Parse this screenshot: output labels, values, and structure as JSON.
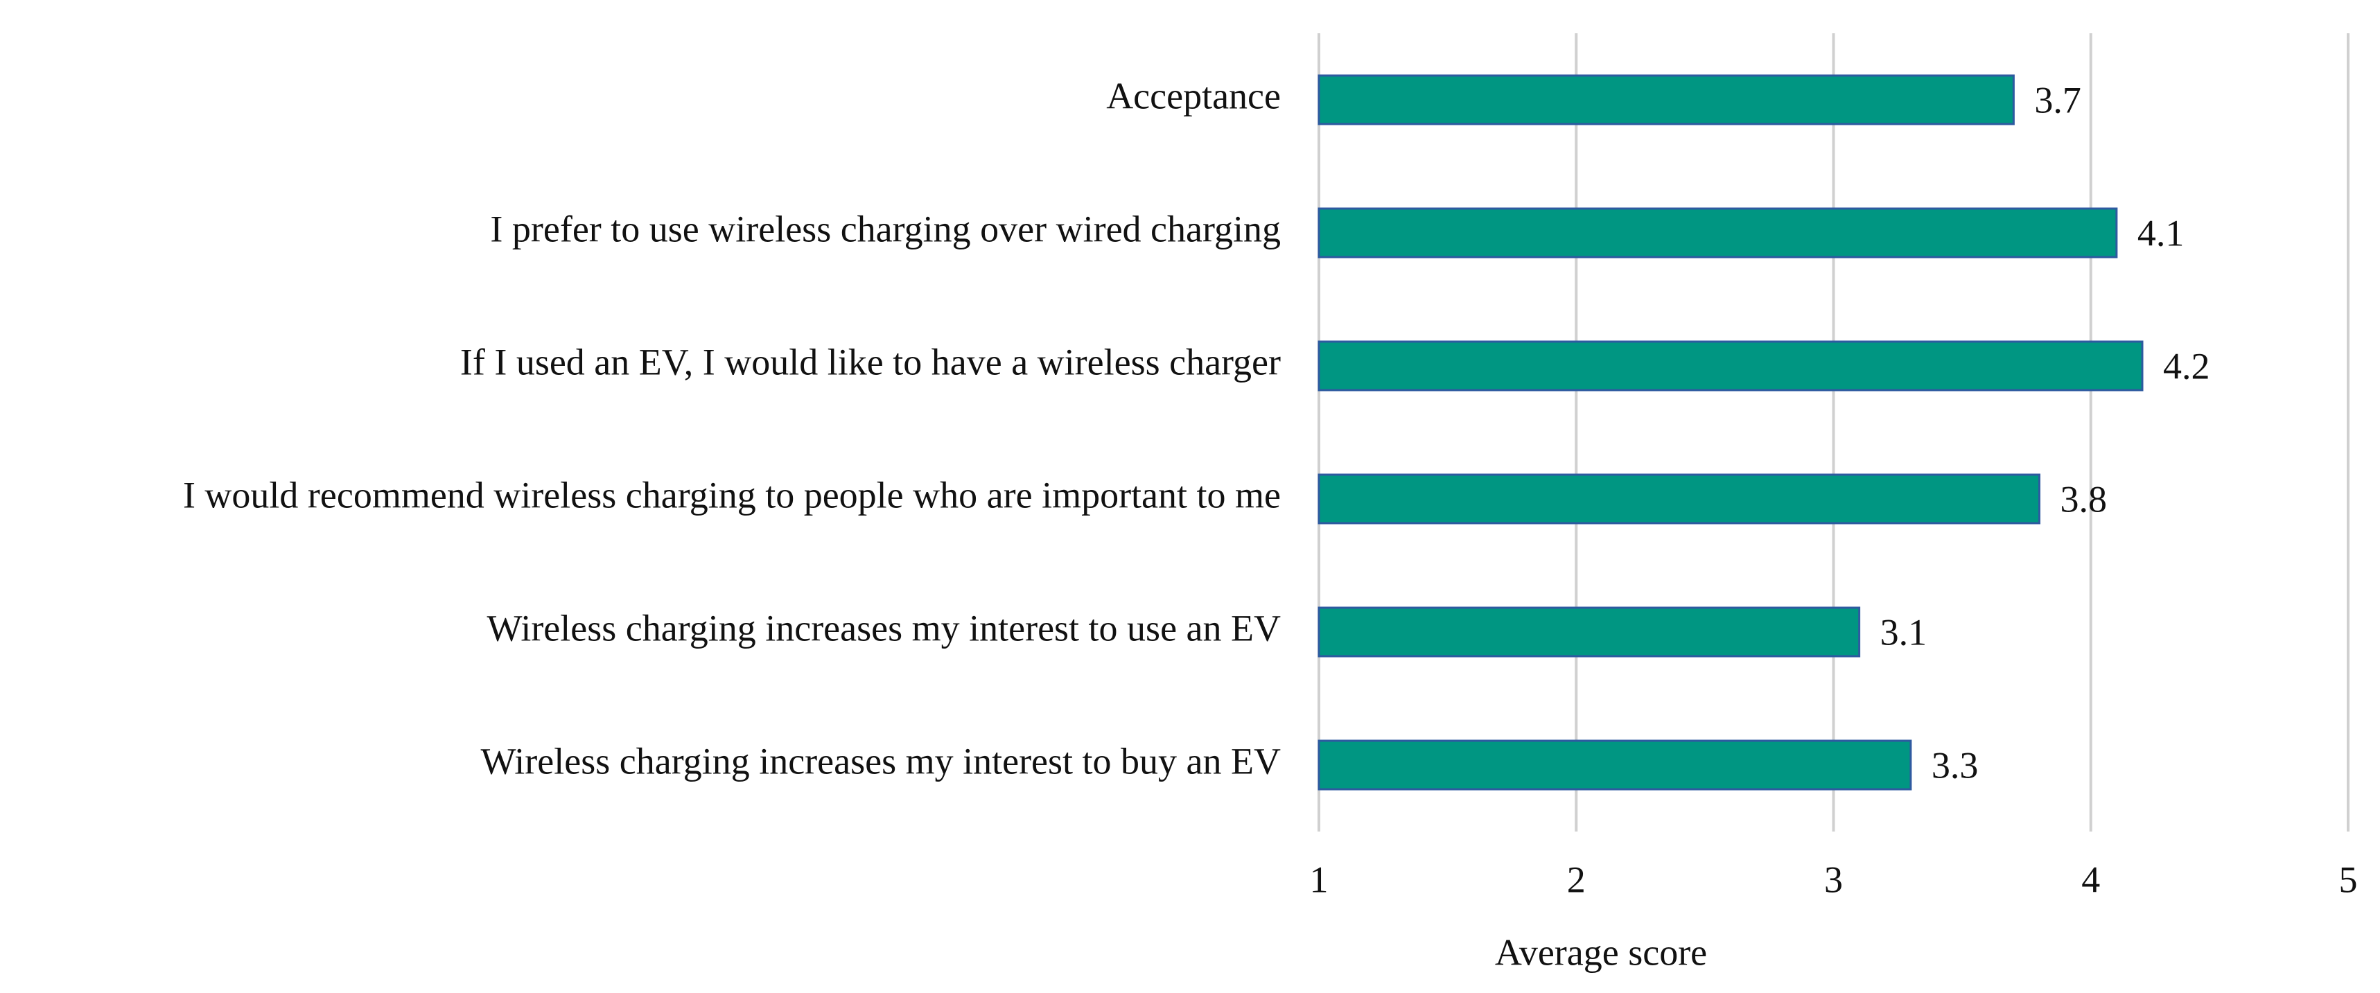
{
  "chart_data": {
    "type": "bar",
    "orientation": "horizontal",
    "x_label": "Average score",
    "categories": [
      "Acceptance",
      "I prefer to use wireless charging over wired charging",
      "If I used an EV, I would like to have a wireless charger",
      "I would recommend wireless charging to people who are important to me",
      "Wireless charging increases my interest to use an EV",
      "Wireless charging increases my interest to buy an EV"
    ],
    "values": [
      3.7,
      4.1,
      4.2,
      3.8,
      3.1,
      3.3
    ],
    "color": "#009682",
    "edge_color": "#2e5aa0",
    "xlim": [
      1,
      5
    ],
    "xticks": [
      1,
      2,
      3,
      4,
      5
    ],
    "grid": true
  }
}
